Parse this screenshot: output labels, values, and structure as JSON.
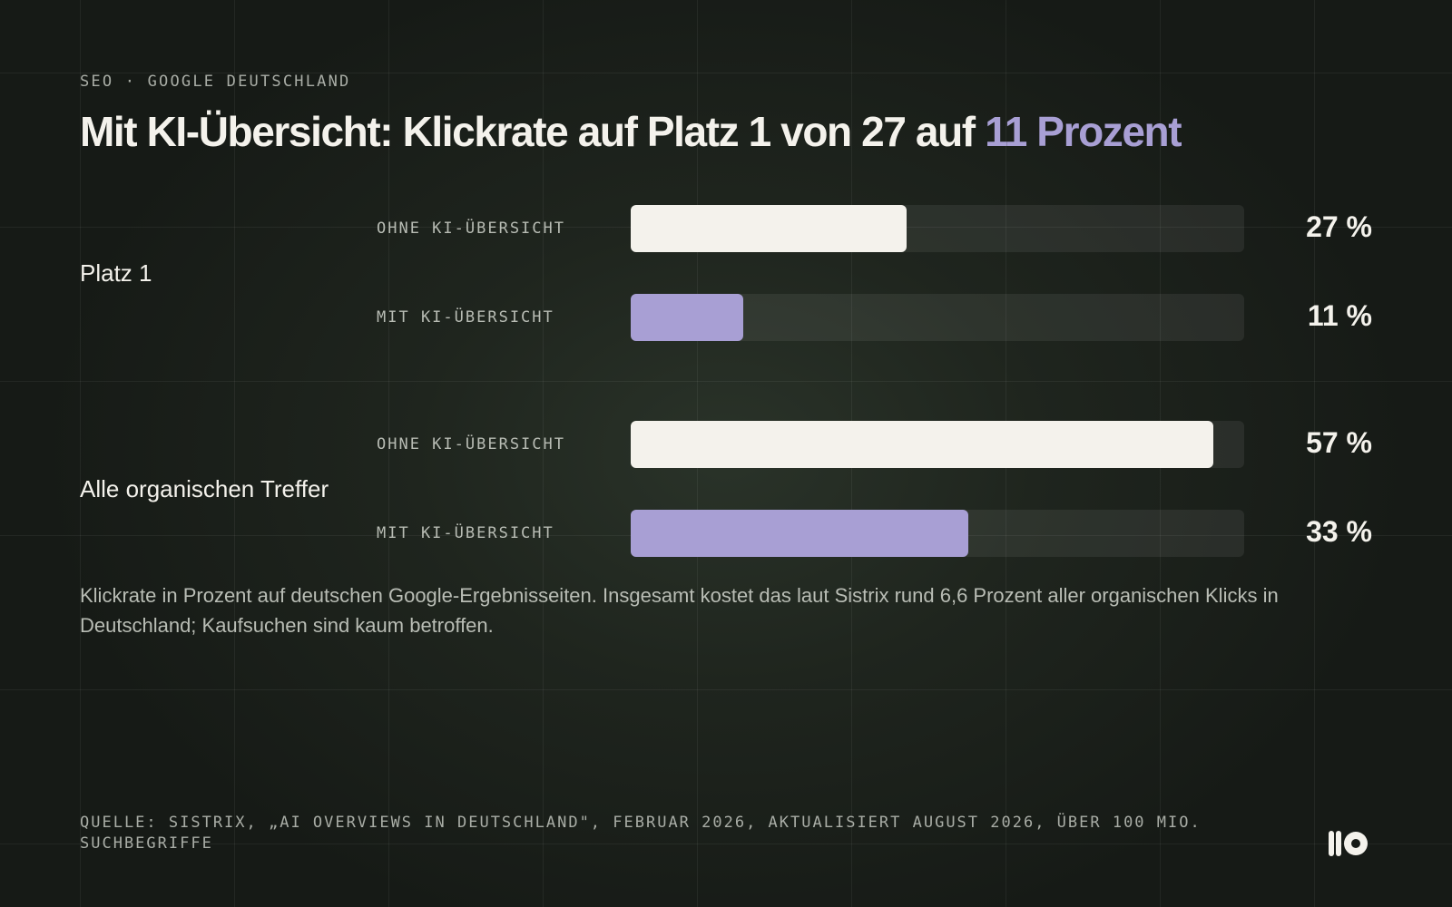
{
  "header": {
    "kicker": "SEO · GOOGLE DEUTSCHLAND",
    "title_main": "Mit KI-Übersicht: Klickrate auf Platz 1 von 27 auf",
    "title_accent": "11 Prozent"
  },
  "colors": {
    "background": "#161a16",
    "ohne_bar": "#f4f2ec",
    "mit_bar": "#a89fd4",
    "accent": "#a89fd4"
  },
  "chart_data": {
    "type": "bar",
    "orientation": "horizontal",
    "title": "Mit KI-Übersicht: Klickrate auf Platz 1 von 27 auf 11 Prozent",
    "xlim": [
      0,
      60
    ],
    "unit": "%",
    "groups": [
      {
        "label": "Platz 1",
        "bars": [
          {
            "label": "OHNE KI-ÜBERSICHT",
            "value": 27,
            "value_label": "27 %"
          },
          {
            "label": "MIT KI-ÜBERSICHT",
            "value": 11,
            "value_label": "11 %"
          }
        ]
      },
      {
        "label": "Alle organischen Treffer",
        "bars": [
          {
            "label": "OHNE KI-ÜBERSICHT",
            "value": 57,
            "value_label": "57 %"
          },
          {
            "label": "MIT KI-ÜBERSICHT",
            "value": 33,
            "value_label": "33 %"
          }
        ]
      }
    ]
  },
  "note": "Klickrate in Prozent auf deutschen Google-Ergebnisseiten. Insgesamt kostet das laut Sistrix rund 6,6 Prozent aller organischen Klicks in Deutschland; Kaufsuchen sind kaum betroffen.",
  "source": "QUELLE: SISTRIX, „AI OVERVIEWS IN DEUTSCHLAND\", FEBRUAR 2026, AKTUALISIERT AUGUST 2026, ÜBER 100 MIO. SUCHBEGRIFFE",
  "logo": {
    "icon": "brand-logo-icon"
  }
}
